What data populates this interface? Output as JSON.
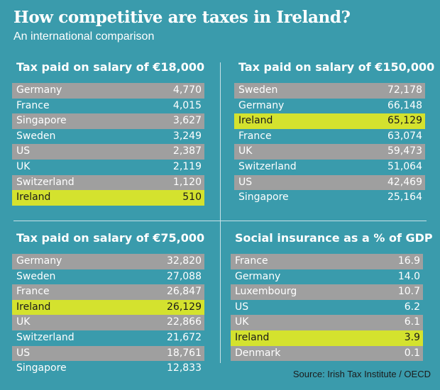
{
  "header": {
    "title": "How competitive are taxes in Ireland?",
    "subtitle": "An international comparison"
  },
  "source": "Source: Irish Tax Institute / OECD",
  "colors": {
    "background": "#3a9bac",
    "band": "#9f9f9f",
    "highlight": "#d4e22e"
  },
  "chart_data": [
    {
      "type": "table",
      "title": "Tax paid on salary of €18,000",
      "rows": [
        {
          "label": "Germany",
          "value": "4,770"
        },
        {
          "label": "France",
          "value": "4,015"
        },
        {
          "label": "Singapore",
          "value": "3,627"
        },
        {
          "label": "Sweden",
          "value": "3,249"
        },
        {
          "label": "US",
          "value": "2,387"
        },
        {
          "label": "UK",
          "value": "2,119"
        },
        {
          "label": "Switzerland",
          "value": "1,120"
        },
        {
          "label": "Ireland",
          "value": "510",
          "highlight": true
        }
      ]
    },
    {
      "type": "table",
      "title": "Tax paid on salary of €150,000",
      "rows": [
        {
          "label": "Sweden",
          "value": "72,178"
        },
        {
          "label": "Germany",
          "value": "66,148"
        },
        {
          "label": "Ireland",
          "value": "65,129",
          "highlight": true
        },
        {
          "label": "France",
          "value": "63,074"
        },
        {
          "label": "UK",
          "value": "59,473"
        },
        {
          "label": "Switzerland",
          "value": "51,064"
        },
        {
          "label": "US",
          "value": "42,469"
        },
        {
          "label": "Singapore",
          "value": "25,164"
        }
      ]
    },
    {
      "type": "table",
      "title": "Tax paid on salary of €75,000",
      "rows": [
        {
          "label": "Germany",
          "value": "32,820"
        },
        {
          "label": "Sweden",
          "value": "27,088"
        },
        {
          "label": "France",
          "value": "26,847"
        },
        {
          "label": "Ireland",
          "value": "26,129",
          "highlight": true
        },
        {
          "label": "UK",
          "value": "22,866"
        },
        {
          "label": "Switzerland",
          "value": "21,672"
        },
        {
          "label": "US",
          "value": "18,761"
        },
        {
          "label": "Singapore",
          "value": "12,833"
        }
      ]
    },
    {
      "type": "table",
      "title": "Social insurance as a % of GDP",
      "rows": [
        {
          "label": "France",
          "value": "16.9"
        },
        {
          "label": "Germany",
          "value": "14.0"
        },
        {
          "label": "Luxembourg",
          "value": "10.7"
        },
        {
          "label": "US",
          "value": "6.2"
        },
        {
          "label": "UK",
          "value": "6.1"
        },
        {
          "label": "Ireland",
          "value": "3.9",
          "highlight": true
        },
        {
          "label": "Denmark",
          "value": "0.1"
        }
      ]
    }
  ]
}
